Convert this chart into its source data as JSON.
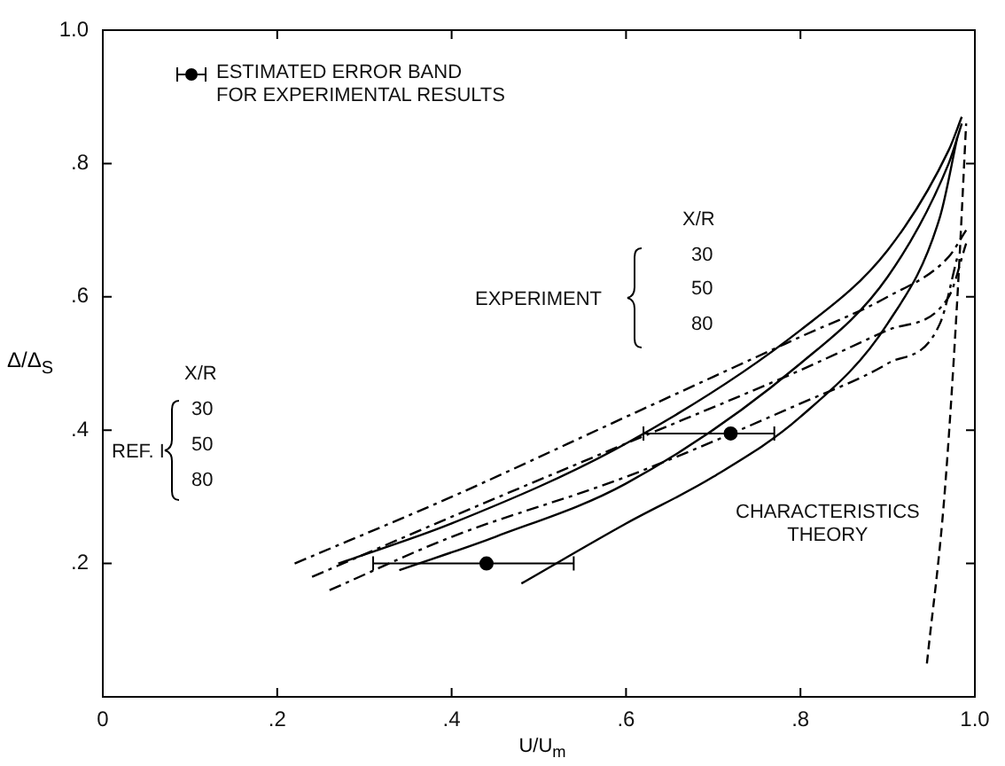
{
  "chart_data": {
    "type": "line",
    "xlabel": "U/U$_{m}$",
    "ylabel": "Δ/Δ$_{S}$",
    "xlim": [
      0,
      1
    ],
    "ylim": [
      0,
      1
    ],
    "xticks": [
      0,
      {
        "value": 0.2,
        "label": ".2"
      },
      {
        "value": 0.4,
        "label": ".4"
      },
      {
        "value": 0.6,
        "label": ".6"
      },
      {
        "value": 0.8,
        "label": ".8"
      },
      {
        "value": 1,
        "label": "1.0"
      }
    ],
    "yticks": [
      {
        "value": 0,
        "label": null
      },
      {
        "value": 0.2,
        "label": ".2"
      },
      {
        "value": 0.4,
        "label": ".4"
      },
      {
        "value": 0.6,
        "label": ".6"
      },
      {
        "value": 0.8,
        "label": ".8"
      },
      {
        "value": 1,
        "label": "1.0"
      }
    ],
    "marker": "none",
    "series": [
      {
        "color": "#000000",
        "line_style": "dashed",
        "x": [
          0.22,
          0.4,
          0.6,
          0.8,
          0.9,
          0.97,
          0.99
        ],
        "values": [
          0.2,
          0.3,
          0.42,
          0.54,
          0.6,
          0.66,
          0.7
        ]
      },
      {
        "color": "#000000",
        "line_style": "dashed",
        "x": [
          0.24,
          0.4,
          0.6,
          0.8,
          0.9,
          0.97,
          0.99
        ],
        "values": [
          0.18,
          0.27,
          0.38,
          0.49,
          0.55,
          0.6,
          0.68
        ]
      },
      {
        "color": "#000000",
        "line_style": "dashed",
        "x": [
          0.26,
          0.4,
          0.6,
          0.8,
          0.9,
          0.96,
          0.98
        ],
        "values": [
          0.16,
          0.24,
          0.33,
          0.44,
          0.5,
          0.56,
          0.66
        ]
      },
      {
        "color": "#000000",
        "line_style": "solid",
        "x": [
          0.27,
          0.4,
          0.6,
          0.8,
          0.9,
          0.97,
          0.985
        ],
        "values": [
          0.2,
          0.26,
          0.38,
          0.55,
          0.67,
          0.82,
          0.87
        ]
      },
      {
        "color": "#000000",
        "line_style": "solid",
        "x": [
          0.34,
          0.45,
          0.6,
          0.8,
          0.9,
          0.97,
          0.985
        ],
        "values": [
          0.19,
          0.24,
          0.32,
          0.5,
          0.63,
          0.8,
          0.86
        ]
      },
      {
        "color": "#000000",
        "line_style": "solid",
        "x": [
          0.48,
          0.6,
          0.7,
          0.8,
          0.9,
          0.96,
          0.98
        ],
        "values": [
          0.17,
          0.26,
          0.33,
          0.42,
          0.56,
          0.72,
          0.84
        ]
      },
      {
        "color": "#000000",
        "line_style": "dashed",
        "x": [
          0.945,
          0.965,
          0.98,
          0.99
        ],
        "values": [
          0.05,
          0.3,
          0.6,
          0.86
        ]
      },
      {
        "type": "scatter",
        "marker": "circle",
        "color": "#000000",
        "x": [
          0.44,
          0.72
        ],
        "values": [
          0.2,
          0.395
        ],
        "xerrors": [
          [
            0.31,
            0.54
          ],
          [
            0.62,
            0.77
          ]
        ]
      }
    ],
    "annotations": [
      "ESTIMATED ERROR BAND\nFOR EXPERIMENTAL RESULTS",
      "EXPERIMENT",
      "X/R",
      "30",
      "50",
      "80",
      "REF. I",
      "X/R",
      "30",
      "50",
      "80",
      "CHARACTERISTICS\nTHEORY"
    ]
  }
}
